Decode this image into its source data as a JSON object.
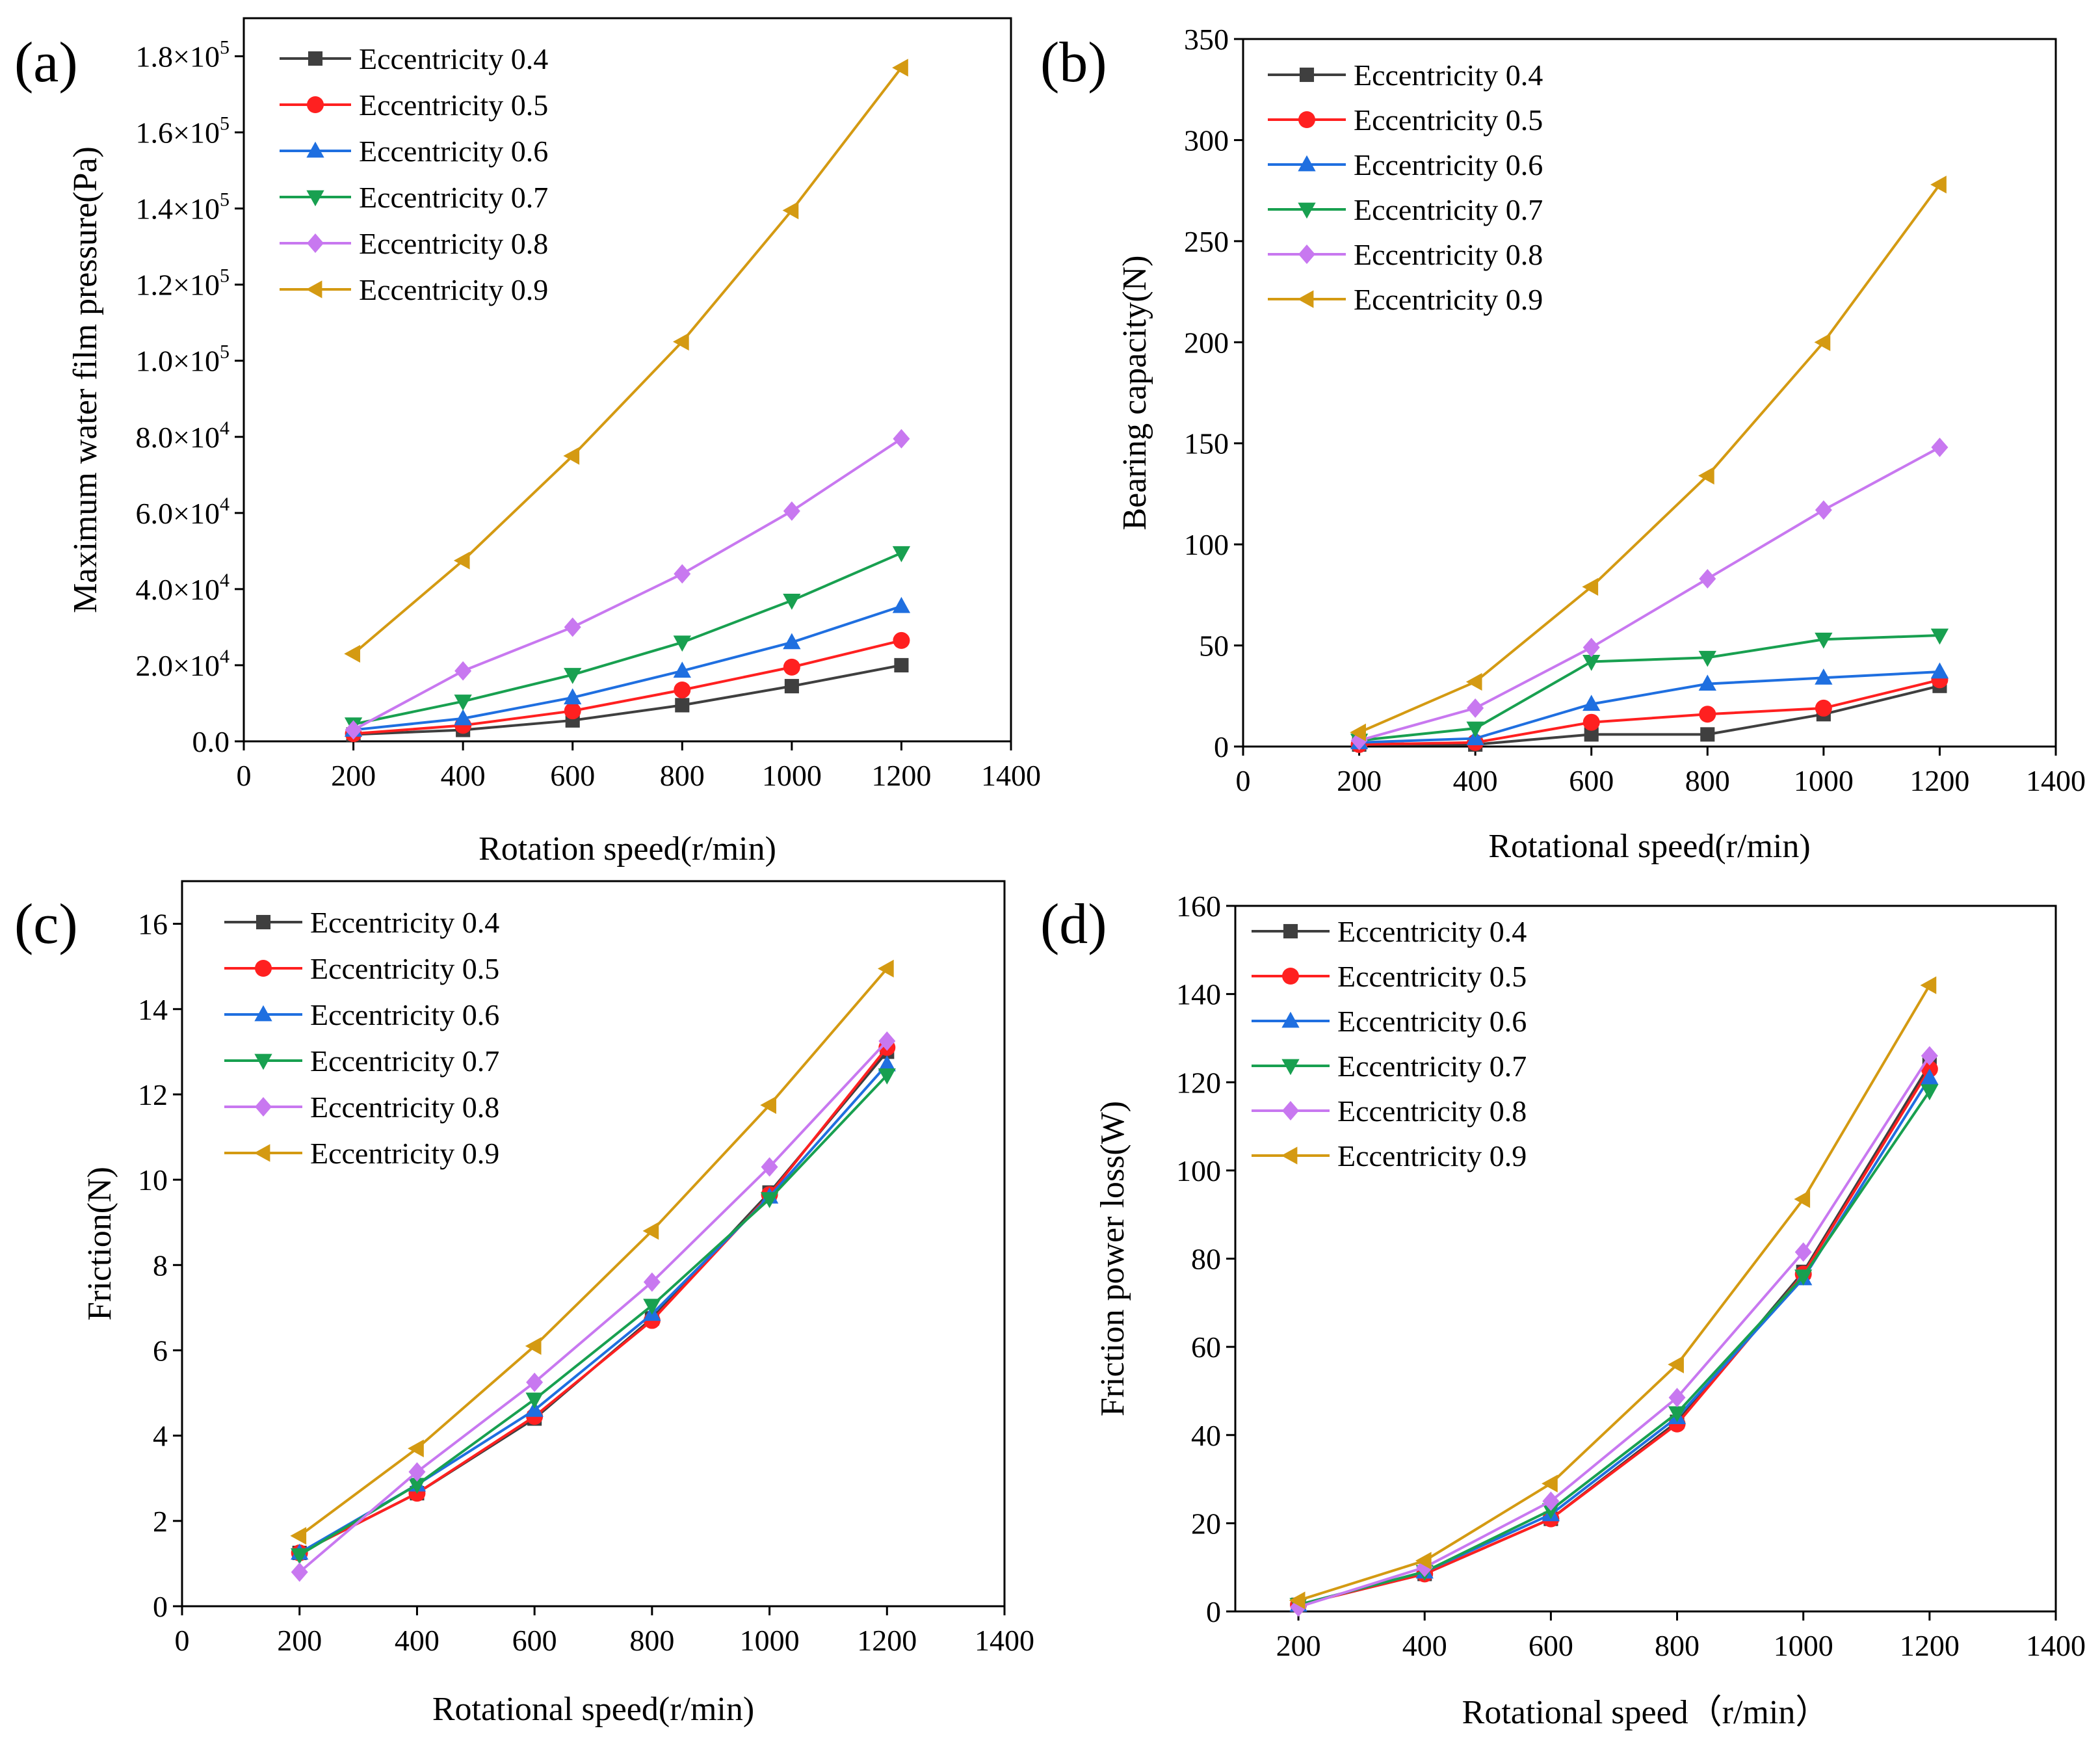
{
  "chart_data": [
    {
      "type": "line",
      "panel_label": "(a)",
      "xlabel": "Rotation speed(r/min)",
      "ylabel": "Maximum water film pressure(Pa)",
      "xlim": [
        0,
        1400
      ],
      "ylim": [
        0,
        190000
      ],
      "x_ticks": [
        0,
        200,
        400,
        600,
        800,
        1000,
        1200,
        1400
      ],
      "x_tick_labels": [
        "0",
        "200",
        "400",
        "600",
        "800",
        "1000",
        "1200",
        "1400"
      ],
      "y_ticks": [
        0,
        20000,
        40000,
        60000,
        80000,
        100000,
        120000,
        140000,
        160000,
        180000
      ],
      "y_tick_labels": [
        {
          "mant": "0.0",
          "exp": ""
        },
        {
          "mant": "2.0×10",
          "exp": "4"
        },
        {
          "mant": "4.0×10",
          "exp": "4"
        },
        {
          "mant": "6.0×10",
          "exp": "4"
        },
        {
          "mant": "8.0×10",
          "exp": "4"
        },
        {
          "mant": "1.0×10",
          "exp": "5"
        },
        {
          "mant": "1.2×10",
          "exp": "5"
        },
        {
          "mant": "1.4×10",
          "exp": "5"
        },
        {
          "mant": "1.6×10",
          "exp": "5"
        },
        {
          "mant": "1.8×10",
          "exp": "5"
        }
      ],
      "legend_position": "top-left",
      "x": [
        200,
        400,
        600,
        800,
        1000,
        1200
      ],
      "series": [
        {
          "name": "Eccentricity 0.4",
          "values": [
            1800,
            3000,
            5500,
            9500,
            14500,
            20000
          ]
        },
        {
          "name": "Eccentricity 0.5",
          "values": [
            2000,
            4200,
            8000,
            13500,
            19500,
            26500
          ]
        },
        {
          "name": "Eccentricity 0.6",
          "values": [
            3000,
            6000,
            11500,
            18500,
            26000,
            35500
          ]
        },
        {
          "name": "Eccentricity 0.7",
          "values": [
            4500,
            10500,
            17500,
            26000,
            37000,
            49500
          ]
        },
        {
          "name": "Eccentricity 0.8",
          "values": [
            3000,
            18500,
            30000,
            44000,
            60500,
            79500
          ]
        },
        {
          "name": "Eccentricity 0.9",
          "values": [
            23000,
            47500,
            75000,
            105000,
            139500,
            177000
          ]
        }
      ]
    },
    {
      "type": "line",
      "panel_label": "(b)",
      "xlabel": "Rotational speed(r/min)",
      "ylabel": "Bearing capacity(N)",
      "xlim": [
        0,
        1400
      ],
      "ylim": [
        0,
        350
      ],
      "x_ticks": [
        0,
        200,
        400,
        600,
        800,
        1000,
        1200,
        1400
      ],
      "x_tick_labels": [
        "0",
        "200",
        "400",
        "600",
        "800",
        "1000",
        "1200",
        "1400"
      ],
      "y_ticks": [
        0,
        50,
        100,
        150,
        200,
        250,
        300,
        350
      ],
      "y_tick_labels": [
        {
          "mant": "0",
          "exp": ""
        },
        {
          "mant": "50",
          "exp": ""
        },
        {
          "mant": "100",
          "exp": ""
        },
        {
          "mant": "150",
          "exp": ""
        },
        {
          "mant": "200",
          "exp": ""
        },
        {
          "mant": "250",
          "exp": ""
        },
        {
          "mant": "300",
          "exp": ""
        },
        {
          "mant": "350",
          "exp": ""
        }
      ],
      "legend_position": "top-left",
      "x": [
        200,
        400,
        600,
        800,
        1000,
        1200
      ],
      "series": [
        {
          "name": "Eccentricity 0.4",
          "values": [
            1,
            1,
            6,
            6,
            16,
            30
          ]
        },
        {
          "name": "Eccentricity 0.5",
          "values": [
            1,
            2,
            12,
            16,
            19,
            33
          ]
        },
        {
          "name": "Eccentricity 0.6",
          "values": [
            2,
            4,
            21,
            31,
            34,
            37
          ]
        },
        {
          "name": "Eccentricity 0.7",
          "values": [
            3,
            9,
            42,
            44,
            53,
            55
          ]
        },
        {
          "name": "Eccentricity 0.8",
          "values": [
            3,
            19,
            49,
            83,
            117,
            148
          ]
        },
        {
          "name": "Eccentricity 0.9",
          "values": [
            7,
            32,
            79,
            134,
            200,
            278
          ]
        }
      ]
    },
    {
      "type": "line",
      "panel_label": "(c)",
      "xlabel": "Rotational speed(r/min)",
      "ylabel": "Friction(N)",
      "xlim": [
        0,
        1400
      ],
      "ylim": [
        0,
        17
      ],
      "x_ticks": [
        0,
        200,
        400,
        600,
        800,
        1000,
        1200,
        1400
      ],
      "x_tick_labels": [
        "0",
        "200",
        "400",
        "600",
        "800",
        "1000",
        "1200",
        "1400"
      ],
      "y_ticks": [
        0,
        2,
        4,
        6,
        8,
        10,
        12,
        14,
        16
      ],
      "y_tick_labels": [
        {
          "mant": "0",
          "exp": ""
        },
        {
          "mant": "2",
          "exp": ""
        },
        {
          "mant": "4",
          "exp": ""
        },
        {
          "mant": "6",
          "exp": ""
        },
        {
          "mant": "8",
          "exp": ""
        },
        {
          "mant": "10",
          "exp": ""
        },
        {
          "mant": "12",
          "exp": ""
        },
        {
          "mant": "14",
          "exp": ""
        },
        {
          "mant": "16",
          "exp": ""
        }
      ],
      "legend_position": "top-left",
      "x": [
        200,
        400,
        600,
        800,
        1000,
        1200
      ],
      "series": [
        {
          "name": "Eccentricity 0.4",
          "values": [
            1.25,
            2.65,
            4.4,
            6.75,
            9.7,
            13.0
          ]
        },
        {
          "name": "Eccentricity 0.5",
          "values": [
            1.25,
            2.65,
            4.45,
            6.7,
            9.65,
            13.1
          ]
        },
        {
          "name": "Eccentricity 0.6",
          "values": [
            1.25,
            2.85,
            4.6,
            6.85,
            9.6,
            12.7
          ]
        },
        {
          "name": "Eccentricity 0.7",
          "values": [
            1.2,
            2.85,
            4.85,
            7.05,
            9.55,
            12.45
          ]
        },
        {
          "name": "Eccentricity 0.8",
          "values": [
            0.8,
            3.15,
            5.25,
            7.6,
            10.3,
            13.25
          ]
        },
        {
          "name": "Eccentricity 0.9",
          "values": [
            1.65,
            3.7,
            6.1,
            8.8,
            11.75,
            14.95
          ]
        }
      ]
    },
    {
      "type": "line",
      "panel_label": "(d)",
      "xlabel": "Rotational speed（r/min）",
      "ylabel": "Friction power loss(W)",
      "xlim": [
        100,
        1400
      ],
      "ylim": [
        0,
        160
      ],
      "x_ticks": [
        200,
        400,
        600,
        800,
        1000,
        1200,
        1400
      ],
      "x_tick_labels": [
        "200",
        "400",
        "600",
        "800",
        "1000",
        "1200",
        "1400"
      ],
      "y_ticks": [
        0,
        20,
        40,
        60,
        80,
        100,
        120,
        140,
        160
      ],
      "y_tick_labels": [
        {
          "mant": "0",
          "exp": ""
        },
        {
          "mant": "20",
          "exp": ""
        },
        {
          "mant": "40",
          "exp": ""
        },
        {
          "mant": "60",
          "exp": ""
        },
        {
          "mant": "80",
          "exp": ""
        },
        {
          "mant": "100",
          "exp": ""
        },
        {
          "mant": "120",
          "exp": ""
        },
        {
          "mant": "140",
          "exp": ""
        },
        {
          "mant": "160",
          "exp": ""
        }
      ],
      "legend_position": "top-left",
      "x": [
        200,
        400,
        600,
        800,
        1000,
        1200
      ],
      "series": [
        {
          "name": "Eccentricity 0.4",
          "values": [
            1.5,
            8.5,
            21,
            43,
            77,
            124
          ]
        },
        {
          "name": "Eccentricity 0.5",
          "values": [
            1.5,
            8.5,
            21,
            42.5,
            76.5,
            123
          ]
        },
        {
          "name": "Eccentricity 0.6",
          "values": [
            1.5,
            9,
            22,
            44,
            75.5,
            121
          ]
        },
        {
          "name": "Eccentricity 0.7",
          "values": [
            1.5,
            9,
            23,
            45,
            76,
            118
          ]
        },
        {
          "name": "Eccentricity 0.8",
          "values": [
            1.0,
            10,
            25,
            48.5,
            81.5,
            126
          ]
        },
        {
          "name": "Eccentricity 0.9",
          "values": [
            2.5,
            11.5,
            29,
            56,
            93.5,
            142
          ]
        }
      ]
    }
  ],
  "series_colors": [
    "#3f3f3f",
    "#ff2020",
    "#1f6fe0",
    "#18a050",
    "#c878f0",
    "#d49a12"
  ],
  "series_markers": [
    "square-marker",
    "circle-marker",
    "triangle-up-marker",
    "triangle-down-marker",
    "diamond-marker",
    "triangle-left-marker"
  ]
}
